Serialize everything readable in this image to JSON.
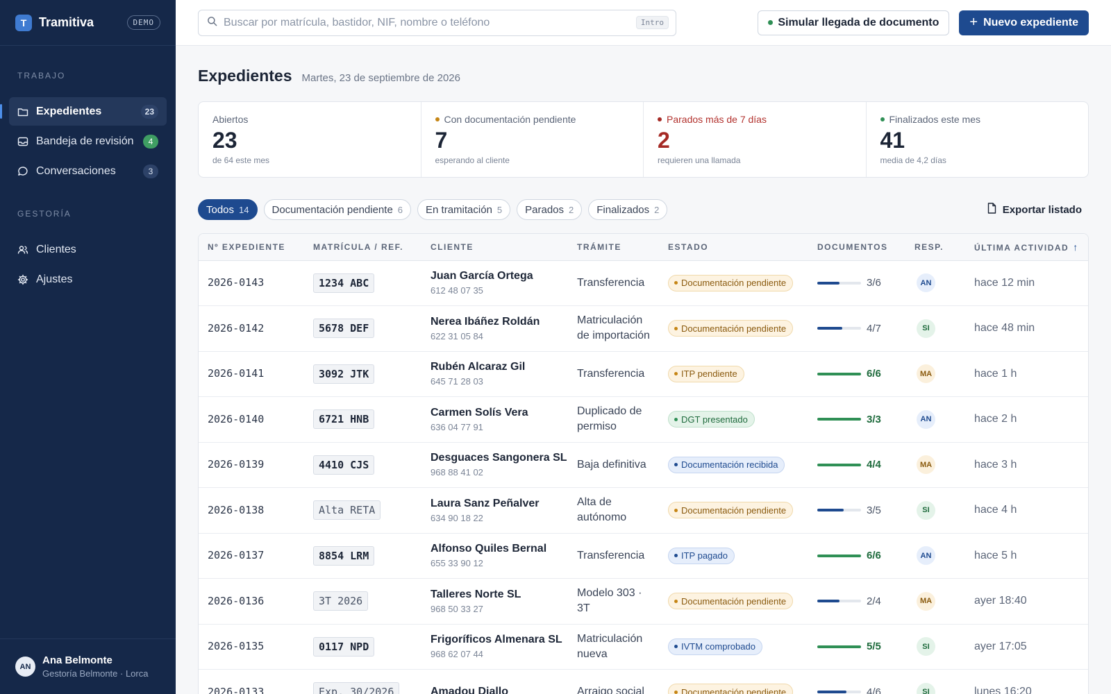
{
  "colors": {
    "sidebar_bg": "#152849",
    "primary": "#1e4a8f",
    "success": "#2f8f55",
    "warning": "#c58514",
    "danger": "#a52a25"
  },
  "app": {
    "name": "Tramitiva",
    "badge": "DEMO",
    "logo_letter": "T"
  },
  "sidebar": {
    "sections": [
      {
        "label": "TRABAJO",
        "items": [
          {
            "label": "Expedientes",
            "count": "23",
            "icon": "folder-icon",
            "active": true
          },
          {
            "label": "Bandeja de revisión",
            "count": "4",
            "icon": "inbox-icon"
          },
          {
            "label": "Conversaciones",
            "count": "3",
            "icon": "chat-icon"
          }
        ]
      },
      {
        "label": "GESTORÍA",
        "items": [
          {
            "label": "Clientes",
            "icon": "users-icon"
          },
          {
            "label": "Ajustes",
            "icon": "gear-icon"
          }
        ]
      }
    ],
    "user": {
      "initials": "AN",
      "name": "Ana Belmonte",
      "org": "Gestoría Belmonte · Lorca"
    }
  },
  "topbar": {
    "search_placeholder": "Buscar por matrícula, bastidor, NIF, nombre o teléfono",
    "search_value": "",
    "search_hint": "Intro",
    "simulate_label": "Simular llegada de documento",
    "new_label": "Nuevo expediente"
  },
  "page": {
    "title": "Expedientes",
    "date": "Martes, 23 de septiembre de 2026"
  },
  "stats": [
    {
      "label": "Abiertos",
      "value": "23",
      "sub": "de 64 este mes",
      "dot": null
    },
    {
      "label": "Con documentación pendiente",
      "value": "7",
      "sub": "esperando al cliente",
      "dot": "#c58514"
    },
    {
      "label": "Parados más de 7 días",
      "value": "2",
      "sub": "requieren una llamada",
      "dot": "#a52a25"
    },
    {
      "label": "Finalizados este mes",
      "value": "41",
      "sub": "media de 4,2 días",
      "dot": "#2f8f55"
    }
  ],
  "filters": [
    {
      "label": "Todos",
      "count": "14",
      "active": true
    },
    {
      "label": "Documentación pendiente",
      "count": "6"
    },
    {
      "label": "En tramitación",
      "count": "5"
    },
    {
      "label": "Parados",
      "count": "2"
    },
    {
      "label": "Finalizados",
      "count": "2"
    }
  ],
  "export_label": "Exportar listado",
  "table": {
    "columns": [
      "Nº EXPEDIENTE",
      "MATRÍCULA / REF.",
      "CLIENTE",
      "TRÁMITE",
      "ESTADO",
      "DOCUMENTOS",
      "RESP.",
      "ÚLTIMA ACTIVIDAD"
    ],
    "sort_indicator": "↑",
    "rows": [
      {
        "id": "2026-0143",
        "plate": "1234 ABC",
        "client": "Juan García Ortega",
        "phone": "612 48 07 35",
        "tramite": "Transferencia",
        "status": "Documentación pendiente",
        "tone": "amber",
        "docs": "3/6",
        "progress": 0.5,
        "resp": "AN",
        "activity": "hace 12 min"
      },
      {
        "id": "2026-0142",
        "plate": "5678 DEF",
        "client": "Nerea Ibáñez Roldán",
        "phone": "622 31 05 84",
        "tramite": "Matriculación de importación",
        "status": "Documentación pendiente",
        "tone": "amber",
        "docs": "4/7",
        "progress": 0.571,
        "resp": "SI",
        "activity": "hace 48 min"
      },
      {
        "id": "2026-0141",
        "plate": "3092 JTK",
        "client": "Rubén Alcaraz Gil",
        "phone": "645 71 28 03",
        "tramite": "Transferencia",
        "status": "ITP pendiente",
        "tone": "amber",
        "docs": "6/6",
        "progress": 1,
        "resp": "MA",
        "activity": "hace 1 h"
      },
      {
        "id": "2026-0140",
        "plate": "6721 HNB",
        "client": "Carmen Solís Vera",
        "phone": "636 04 77 91",
        "tramite": "Duplicado de permiso",
        "status": "DGT presentado",
        "tone": "green",
        "docs": "3/3",
        "progress": 1,
        "resp": "AN",
        "activity": "hace 2 h"
      },
      {
        "id": "2026-0139",
        "plate": "4410 CJS",
        "client": "Desguaces Sangonera SL",
        "phone": "968 88 41 02",
        "tramite": "Baja definitiva",
        "status": "Documentación recibida",
        "tone": "blue",
        "docs": "4/4",
        "progress": 1,
        "resp": "MA",
        "activity": "hace 3 h"
      },
      {
        "id": "2026-0138",
        "plate": "Alta RETA",
        "ref": true,
        "client": "Laura Sanz Peñalver",
        "phone": "634 90 18 22",
        "tramite": "Alta de autónomo",
        "status": "Documentación pendiente",
        "tone": "amber",
        "docs": "3/5",
        "progress": 0.6,
        "resp": "SI",
        "activity": "hace 4 h"
      },
      {
        "id": "2026-0137",
        "plate": "8854 LRM",
        "client": "Alfonso Quiles Bernal",
        "phone": "655 33 90 12",
        "tramite": "Transferencia",
        "status": "ITP pagado",
        "tone": "blue",
        "docs": "6/6",
        "progress": 1,
        "resp": "AN",
        "activity": "hace 5 h"
      },
      {
        "id": "2026-0136",
        "plate": "3T 2026",
        "ref": true,
        "client": "Talleres Norte SL",
        "phone": "968 50 33 27",
        "tramite": "Modelo 303 · 3T",
        "status": "Documentación pendiente",
        "tone": "amber",
        "docs": "2/4",
        "progress": 0.5,
        "resp": "MA",
        "activity": "ayer 18:40"
      },
      {
        "id": "2026-0135",
        "plate": "0117 NPD",
        "client": "Frigoríficos Almenara SL",
        "phone": "968 62 07 44",
        "tramite": "Matriculación nueva",
        "status": "IVTM comprobado",
        "tone": "blue",
        "docs": "5/5",
        "progress": 1,
        "resp": "SI",
        "activity": "ayer 17:05"
      },
      {
        "id": "2026-0133",
        "plate": "Exp. 30/2026",
        "ref": true,
        "client": "Amadou Diallo",
        "phone": "",
        "tramite": "Arraigo social",
        "status": "Documentación pendiente",
        "tone": "amber",
        "docs": "4/6",
        "progress": 0.667,
        "resp": "SI",
        "activity": "lunes 16:20"
      }
    ]
  }
}
